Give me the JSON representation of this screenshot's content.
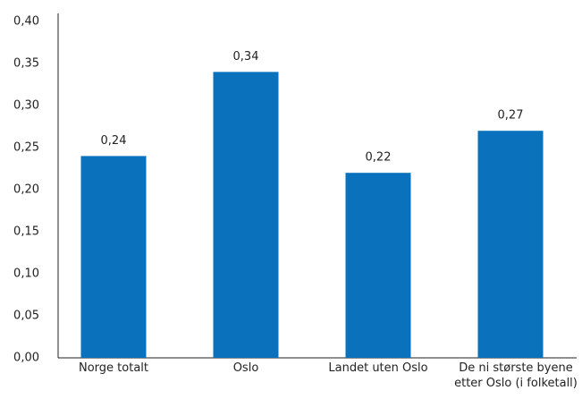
{
  "chart_data": {
    "type": "bar",
    "categories": [
      "Norge totalt",
      "Oslo",
      "Landet uten Oslo",
      "De ni største byene\netter Oslo (i folketall)"
    ],
    "values": [
      0.24,
      0.34,
      0.22,
      0.27
    ],
    "value_labels": [
      "0,24",
      "0,34",
      "0,22",
      "0,27"
    ],
    "color": "#0a72bd",
    "ylim": [
      0,
      0.4
    ],
    "yticks": [
      {
        "value": 0,
        "label": "0,00"
      },
      {
        "value": 0.05,
        "label": "0,05"
      },
      {
        "value": 0.1,
        "label": "0,10"
      },
      {
        "value": 0.15,
        "label": "0,15"
      },
      {
        "value": 0.2,
        "label": "0,20"
      },
      {
        "value": 0.25,
        "label": "0,25"
      },
      {
        "value": 0.3,
        "label": "0,30"
      },
      {
        "value": 0.35,
        "label": "0,35"
      },
      {
        "value": 0.4,
        "label": "0,40"
      }
    ],
    "grid": false
  }
}
